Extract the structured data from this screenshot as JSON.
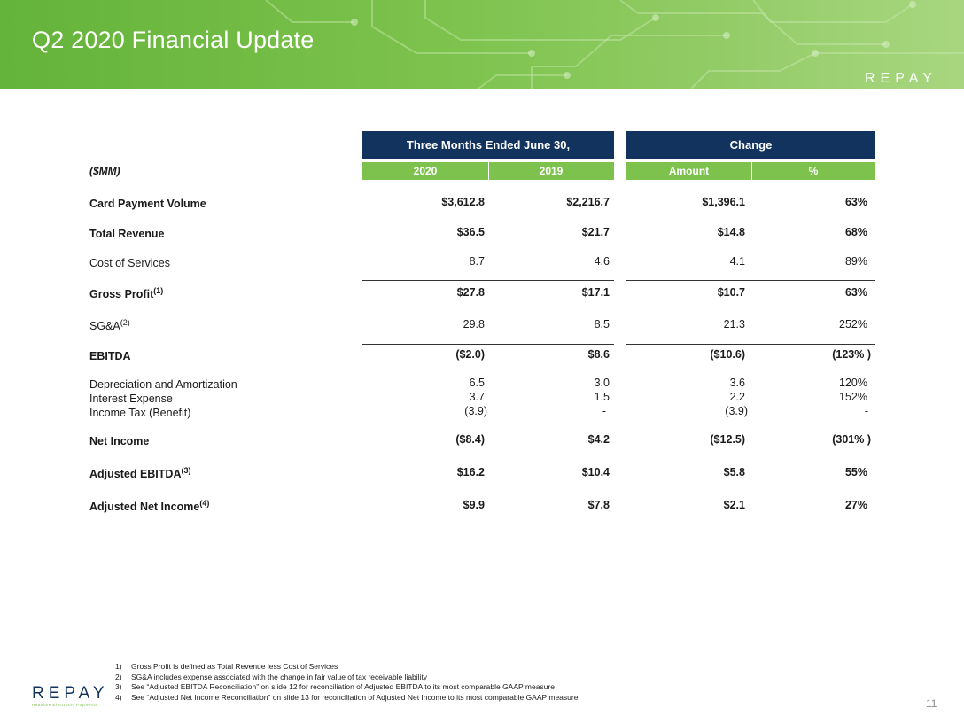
{
  "slide": {
    "title": "Q2 2020 Financial Update",
    "brand": "REPAY",
    "brand_tagline": "Realtime Electronic Payments",
    "page_number": "11"
  },
  "table": {
    "group_headers": [
      "Three Months Ended June 30,",
      "Change"
    ],
    "unit_label": "($MM)",
    "sub_headers": [
      "2020",
      "2019",
      "Amount",
      "%"
    ],
    "rows": [
      {
        "label": "Card Payment Volume",
        "sup": "",
        "v2020": "$3,612.8",
        "v2019": "$2,216.7",
        "amount": "$1,396.1",
        "pct": "63%"
      },
      {
        "label": "Total Revenue",
        "sup": "",
        "v2020": "$36.5",
        "v2019": "$21.7",
        "amount": "$14.8",
        "pct": "68%"
      },
      {
        "label": "Cost of Services",
        "sup": "",
        "v2020": "8.7",
        "v2019": "4.6",
        "amount": "4.1",
        "pct": "89%"
      },
      {
        "label": "Gross Profit",
        "sup": "(1)",
        "v2020": "$27.8",
        "v2019": "$17.1",
        "amount": "$10.7",
        "pct": "63%"
      },
      {
        "label": "SG&A",
        "sup": "(2)",
        "v2020": "29.8",
        "v2019": "8.5",
        "amount": "21.3",
        "pct": "252%"
      },
      {
        "label": "EBITDA",
        "sup": "",
        "v2020": "($2.0)",
        "v2019": "$8.6",
        "amount": "($10.6)",
        "pct": "(123% )"
      },
      {
        "label": "Depreciation and Amortization",
        "sup": "",
        "v2020": "6.5",
        "v2019": "3.0",
        "amount": "3.6",
        "pct": "120%"
      },
      {
        "label": "Interest Expense",
        "sup": "",
        "v2020": "3.7",
        "v2019": "1.5",
        "amount": "2.2",
        "pct": "152%"
      },
      {
        "label": "Income Tax (Benefit)",
        "sup": "",
        "v2020": "(3.9)",
        "v2019": "-",
        "amount": "(3.9)",
        "pct": "-"
      },
      {
        "label": "Net Income",
        "sup": "",
        "v2020": "($8.4)",
        "v2019": "$4.2",
        "amount": "($12.5)",
        "pct": "(301% )"
      },
      {
        "label": "Adjusted EBITDA",
        "sup": "(3)",
        "v2020": "$16.2",
        "v2019": "$10.4",
        "amount": "$5.8",
        "pct": "55%"
      },
      {
        "label": "Adjusted Net Income",
        "sup": "(4)",
        "v2020": "$9.9",
        "v2019": "$7.8",
        "amount": "$2.1",
        "pct": "27%"
      }
    ]
  },
  "footnotes": [
    {
      "num": "1)",
      "text": "Gross Profit is defined as Total Revenue less Cost of Services"
    },
    {
      "num": "2)",
      "text": "SG&A includes expense associated with the change in fair value of tax receivable liability"
    },
    {
      "num": "3)",
      "text": "See “Adjusted EBITDA Reconciliation” on slide 12 for reconciliation of Adjusted EBITDA to its most comparable GAAP measure"
    },
    {
      "num": "4)",
      "text": "See “Adjusted Net Income Reconciliation” on slide 13 for reconciliation of Adjusted Net Income to its most comparable GAAP measure"
    }
  ]
}
